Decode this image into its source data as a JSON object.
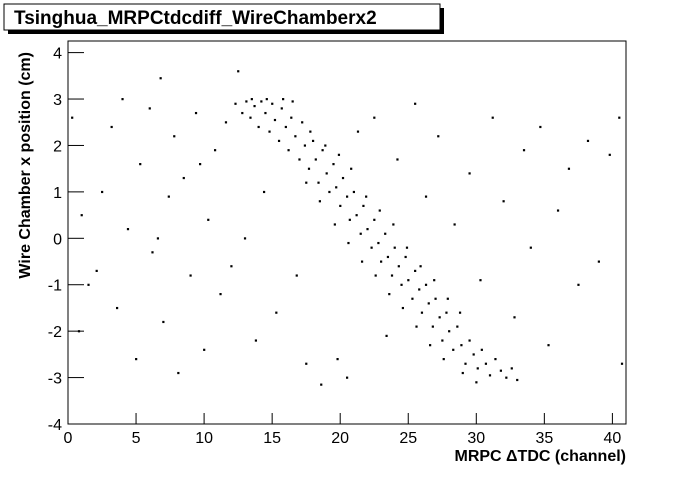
{
  "chart_data": {
    "type": "scatter",
    "title": "Tsinghua_MRPCtdcdiff_WireChamberx2",
    "x_label": "MRPC ΔTDC (channel)",
    "y_label": "Wire Chamber x position (cm)",
    "color": "#000000",
    "xlim": [
      0,
      41
    ],
    "ylim": [
      -4,
      4.25
    ],
    "xticks": [
      0,
      5,
      10,
      15,
      20,
      25,
      30,
      35,
      40
    ],
    "yticks": [
      -4,
      -3,
      -2,
      -1,
      0,
      1,
      2,
      3,
      4
    ],
    "x": [
      12.3,
      12.8,
      13.1,
      13.4,
      13.7,
      14.0,
      14.2,
      14.5,
      14.8,
      15.0,
      15.2,
      15.5,
      15.7,
      16.0,
      16.2,
      16.4,
      16.7,
      17.0,
      17.2,
      17.4,
      17.7,
      18.0,
      18.2,
      18.4,
      18.7,
      19.0,
      19.2,
      19.5,
      19.7,
      20.0,
      20.2,
      20.5,
      20.7,
      21.0,
      21.2,
      21.5,
      21.7,
      22.0,
      22.3,
      22.5,
      22.8,
      23.0,
      23.3,
      23.5,
      23.8,
      24.0,
      24.3,
      24.5,
      24.8,
      25.0,
      25.3,
      25.5,
      25.8,
      26.0,
      26.3,
      26.5,
      26.8,
      27.0,
      27.3,
      27.5,
      27.8,
      28.0,
      28.3,
      28.6,
      28.9,
      29.2,
      29.5,
      29.8,
      30.1,
      30.4,
      30.7,
      31.0,
      31.4,
      31.8,
      32.2,
      32.6,
      33.0,
      13.5,
      14.6,
      15.8,
      16.5,
      17.8,
      18.9,
      19.9,
      20.8,
      21.9,
      22.9,
      23.9,
      24.9,
      25.9,
      26.9,
      27.9,
      28.8,
      17.5,
      18.5,
      19.6,
      20.6,
      21.6,
      22.6,
      23.6,
      24.6,
      25.6,
      26.6,
      27.6,
      29.0,
      30.0,
      1.0,
      2.1,
      2.5,
      3.2,
      3.6,
      4.0,
      4.4,
      5.0,
      5.3,
      6.0,
      6.2,
      6.8,
      7.0,
      7.4,
      7.8,
      8.1,
      8.5,
      9.0,
      9.4,
      10.0,
      10.3,
      10.8,
      11.2,
      11.6,
      12.0,
      12.5,
      13.0,
      13.8,
      14.4,
      15.3,
      16.8,
      17.5,
      18.6,
      19.8,
      20.5,
      21.3,
      22.5,
      23.4,
      24.2,
      25.5,
      26.3,
      27.2,
      28.4,
      29.5,
      30.3,
      31.2,
      32.0,
      32.8,
      33.5,
      34.0,
      34.7,
      35.3,
      36.0,
      36.8,
      37.5,
      38.2,
      39.0,
      39.8,
      40.5,
      40.7,
      0.3,
      1.5,
      0.8,
      9.7,
      6.6
    ],
    "values": [
      2.9,
      2.7,
      2.95,
      2.6,
      2.85,
      2.4,
      2.95,
      2.7,
      2.3,
      2.9,
      2.55,
      2.1,
      2.8,
      2.4,
      1.9,
      2.6,
      2.2,
      1.7,
      2.5,
      2.0,
      1.5,
      2.1,
      1.7,
      1.2,
      1.9,
      1.4,
      1.0,
      1.6,
      1.1,
      0.7,
      1.3,
      0.9,
      0.4,
      1.0,
      0.5,
      0.1,
      0.7,
      0.2,
      -0.2,
      0.4,
      -0.1,
      -0.5,
      0.1,
      -0.4,
      -0.8,
      -0.2,
      -0.6,
      -1.0,
      -0.4,
      -0.9,
      -1.3,
      -0.7,
      -1.1,
      -1.6,
      -1.0,
      -1.4,
      -1.9,
      -1.3,
      -1.7,
      -2.2,
      -1.6,
      -2.0,
      -2.4,
      -1.9,
      -2.3,
      -2.7,
      -2.2,
      -2.5,
      -2.8,
      -2.4,
      -2.7,
      -2.95,
      -2.6,
      -2.85,
      -3.0,
      -2.8,
      -3.05,
      3.0,
      3.0,
      3.0,
      2.95,
      2.3,
      2.0,
      1.8,
      1.5,
      0.9,
      0.6,
      0.3,
      -0.2,
      -0.6,
      -0.9,
      -1.3,
      -1.6,
      1.2,
      0.8,
      0.3,
      -0.1,
      -0.5,
      -0.8,
      -1.2,
      -1.5,
      -1.9,
      -2.3,
      -2.6,
      -2.9,
      -3.1,
      0.5,
      -0.7,
      1.0,
      2.4,
      -1.5,
      3.0,
      0.2,
      -2.6,
      1.6,
      2.8,
      -0.3,
      3.45,
      -1.8,
      0.9,
      2.2,
      -2.9,
      1.3,
      -0.8,
      2.7,
      -2.4,
      0.4,
      1.9,
      -1.2,
      2.5,
      -0.6,
      3.6,
      0.0,
      -2.2,
      1.0,
      -1.6,
      -0.8,
      -2.7,
      -3.15,
      -2.6,
      -3.0,
      2.3,
      2.6,
      -2.1,
      1.7,
      2.9,
      0.9,
      2.2,
      0.3,
      1.4,
      -0.9,
      2.6,
      0.8,
      -1.7,
      1.9,
      -0.2,
      2.4,
      -2.3,
      0.6,
      1.5,
      -1.0,
      2.1,
      -0.5,
      1.8,
      2.6,
      -2.7,
      2.6,
      -1.0,
      -2.0,
      1.6,
      0.0
    ]
  }
}
